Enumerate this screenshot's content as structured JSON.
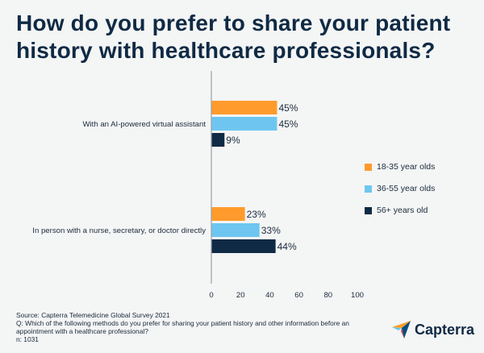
{
  "title": "How do you prefer to share your patient history with healthcare professionals?",
  "legend": [
    {
      "label": "18-35 year olds",
      "color": "#ff9b2c"
    },
    {
      "label": "36-55 year olds",
      "color": "#6ec6f0"
    },
    {
      "label": "56+ years old",
      "color": "#0f2a44"
    }
  ],
  "footer": {
    "source": "Source: Capterra Telemedicine Global Survey 2021",
    "question": "Q: Which of the following methods do you prefer for sharing your patient history and other information before an appointment with a healthcare professional?",
    "n": "n: 1031"
  },
  "logo": {
    "text": "Capterra",
    "icon": "capterra-arrow-icon"
  },
  "chart_data": {
    "type": "bar",
    "orientation": "horizontal",
    "categories": [
      "With an AI-powered virtual assistant",
      "In person with a nurse, secretary, or doctor directly"
    ],
    "series": [
      {
        "name": "18-35 year olds",
        "values": [
          45,
          23
        ],
        "color": "#ff9b2c"
      },
      {
        "name": "36-55 year olds",
        "values": [
          45,
          33
        ],
        "color": "#6ec6f0"
      },
      {
        "name": "56+ years old",
        "values": [
          9,
          44
        ],
        "color": "#0f2a44"
      }
    ],
    "value_suffix": "%",
    "xlim": [
      0,
      100
    ],
    "xticks": [
      0,
      20,
      40,
      60,
      80,
      100
    ],
    "grid": false,
    "legend_position": "right"
  }
}
